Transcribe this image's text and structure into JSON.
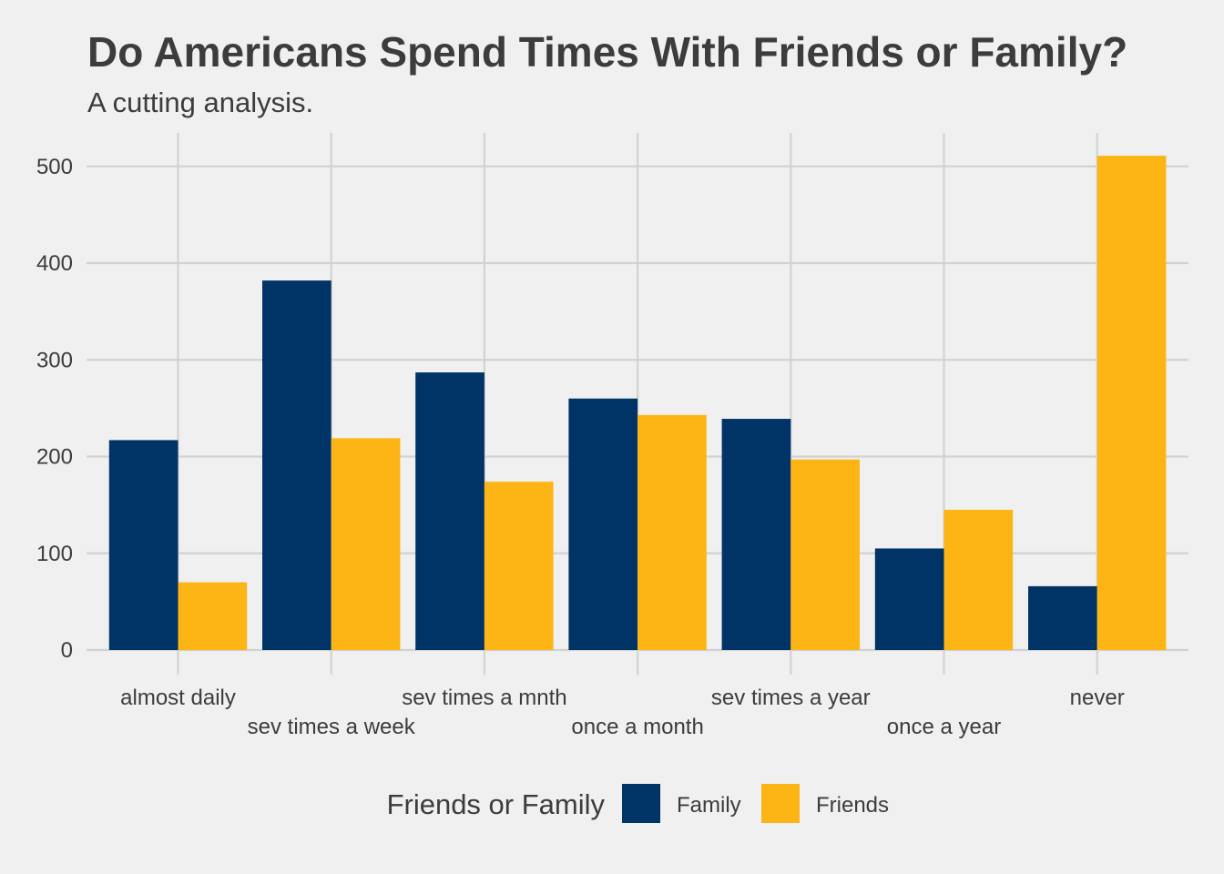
{
  "chart_data": {
    "type": "bar",
    "title": "Do Americans Spend Times With Friends or Family?",
    "subtitle": "A cutting analysis.",
    "xlabel": "",
    "ylabel": "",
    "categories": [
      "almost daily",
      "sev times a week",
      "sev times a mnth",
      "once a month",
      "sev times a year",
      "once a year",
      "never"
    ],
    "series": [
      {
        "name": "Family",
        "color": "#003366",
        "values": [
          217,
          382,
          287,
          260,
          239,
          105,
          66
        ]
      },
      {
        "name": "Friends",
        "color": "#fdb515",
        "values": [
          70,
          219,
          174,
          243,
          197,
          145,
          511
        ]
      }
    ],
    "ylim": [
      0,
      535
    ],
    "yticks": [
      0,
      100,
      200,
      300,
      400,
      500
    ],
    "grid": true,
    "legend": {
      "title": "Friends or Family",
      "placement": "bottom",
      "items": [
        "Family",
        "Friends"
      ]
    },
    "background": "#f0f0f0"
  }
}
